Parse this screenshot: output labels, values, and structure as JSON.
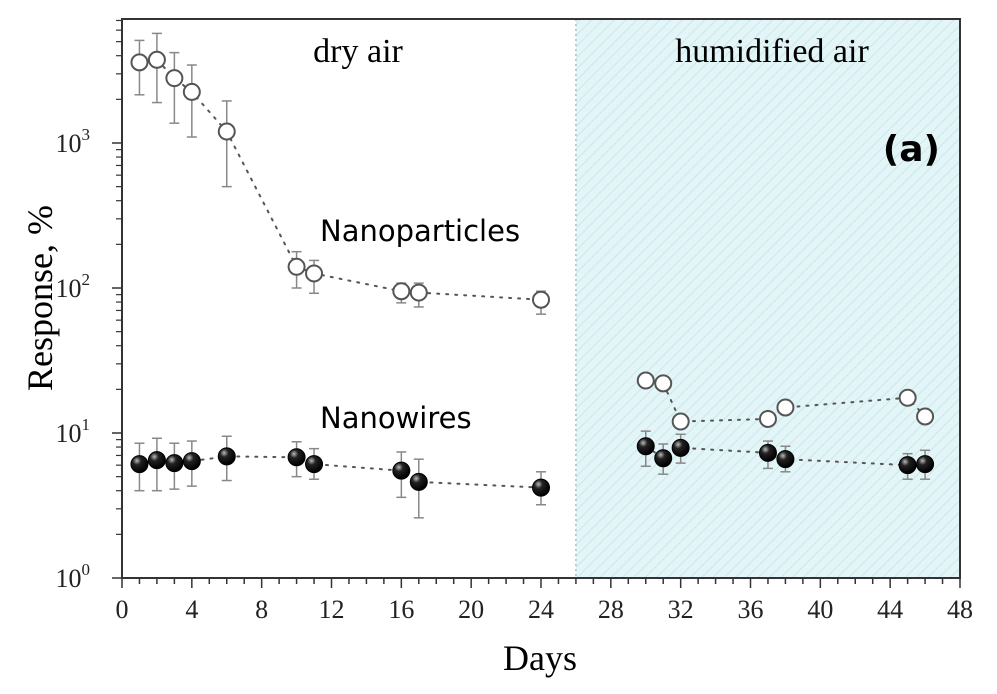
{
  "chart_data": {
    "type": "scatter",
    "title": "",
    "panel_label": "(a)",
    "xlabel": "Days",
    "ylabel": "Response,  %",
    "xlim": [
      0,
      48
    ],
    "ylim_log10": [
      0,
      3.87
    ],
    "yscale": "log",
    "x_ticks": [
      0,
      4,
      8,
      12,
      16,
      20,
      24,
      28,
      32,
      36,
      40,
      44,
      48
    ],
    "y_ticks": [
      {
        "base": "10",
        "exp": "0",
        "value": 1
      },
      {
        "base": "10",
        "exp": "1",
        "value": 10
      },
      {
        "base": "10",
        "exp": "2",
        "value": 100
      },
      {
        "base": "10",
        "exp": "3",
        "value": 1000
      }
    ],
    "regions": [
      {
        "label": "dry air",
        "from": 0,
        "to": 26
      },
      {
        "label": "humidified air",
        "from": 26,
        "to": 48,
        "fill": "#dff3f5"
      }
    ],
    "series": [
      {
        "name": "Nanoparticles",
        "marker": "open-circle",
        "segments": [
          [
            {
              "x": 1,
              "y": 3600,
              "lo": 2150,
              "hi": 5100
            },
            {
              "x": 2,
              "y": 3750,
              "lo": 1900,
              "hi": 5700
            },
            {
              "x": 3,
              "y": 2800,
              "lo": 1370,
              "hi": 4200
            },
            {
              "x": 4,
              "y": 2250,
              "lo": 1100,
              "hi": 3450
            },
            {
              "x": 6,
              "y": 1200,
              "lo": 500,
              "hi": 1950
            },
            {
              "x": 10,
              "y": 140,
              "lo": 100,
              "hi": 178
            },
            {
              "x": 11,
              "y": 126,
              "lo": 92,
              "hi": 155
            },
            {
              "x": 16,
              "y": 95,
              "lo": 79,
              "hi": 108
            },
            {
              "x": 17,
              "y": 93,
              "lo": 74,
              "hi": 108
            },
            {
              "x": 24,
              "y": 83,
              "lo": 66,
              "hi": 95
            }
          ],
          [
            {
              "x": 30,
              "y": 23
            },
            {
              "x": 31,
              "y": 22
            },
            {
              "x": 32,
              "y": 12
            },
            {
              "x": 37,
              "y": 12.5
            },
            {
              "x": 38,
              "y": 15
            },
            {
              "x": 45,
              "y": 17.5
            },
            {
              "x": 46,
              "y": 13
            }
          ]
        ]
      },
      {
        "name": "Nanowires",
        "marker": "filled-sphere",
        "segments": [
          [
            {
              "x": 1,
              "y": 6.1,
              "lo": 4.0,
              "hi": 8.5
            },
            {
              "x": 2,
              "y": 6.5,
              "lo": 4.0,
              "hi": 9.2
            },
            {
              "x": 3,
              "y": 6.2,
              "lo": 4.1,
              "hi": 8.5
            },
            {
              "x": 4,
              "y": 6.4,
              "lo": 4.3,
              "hi": 8.8
            },
            {
              "x": 6,
              "y": 6.9,
              "lo": 4.7,
              "hi": 9.5
            },
            {
              "x": 10,
              "y": 6.8,
              "lo": 5.0,
              "hi": 8.7
            },
            {
              "x": 11,
              "y": 6.1,
              "lo": 4.8,
              "hi": 7.8
            },
            {
              "x": 16,
              "y": 5.5,
              "lo": 3.6,
              "hi": 7.4
            },
            {
              "x": 17,
              "y": 4.6,
              "lo": 2.6,
              "hi": 6.6
            },
            {
              "x": 24,
              "y": 4.2,
              "lo": 3.2,
              "hi": 5.4
            }
          ],
          [
            {
              "x": 30,
              "y": 8.1,
              "lo": 5.9,
              "hi": 10.3
            },
            {
              "x": 31,
              "y": 6.7,
              "lo": 5.2,
              "hi": 8.4
            },
            {
              "x": 32,
              "y": 7.9,
              "lo": 6.2,
              "hi": 9.8
            },
            {
              "x": 37,
              "y": 7.3,
              "lo": 5.7,
              "hi": 8.8
            },
            {
              "x": 38,
              "y": 6.6,
              "lo": 5.4,
              "hi": 8.1
            },
            {
              "x": 45,
              "y": 6.0,
              "lo": 4.8,
              "hi": 7.2
            },
            {
              "x": 46,
              "y": 6.1,
              "lo": 4.8,
              "hi": 7.6
            }
          ]
        ]
      }
    ],
    "annotations": [
      "dry air",
      "humidified air",
      "Nanoparticles",
      "Nanowires",
      "(a)"
    ],
    "legend": "none",
    "grid": false
  }
}
